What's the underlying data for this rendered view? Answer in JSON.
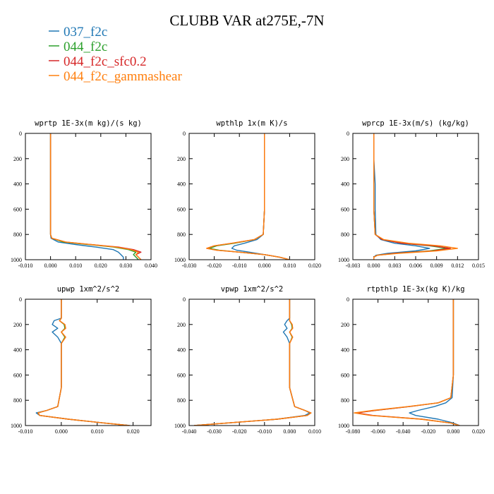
{
  "title": "CLUBB VAR at275E,-7N",
  "legend": [
    {
      "label": "037_f2c",
      "color": "#1f77b4"
    },
    {
      "label": "044_f2c",
      "color": "#2ca02c"
    },
    {
      "label": "044_f2c_sfc0.2",
      "color": "#d62728"
    },
    {
      "label": "044_f2c_gammashear",
      "color": "#ff7f0e"
    }
  ],
  "chart_data": [
    {
      "type": "line",
      "title": "wprtp 1E-3x(m kg)/(s kg)",
      "xlim": [
        -0.01,
        0.04
      ],
      "ylim": [
        1000,
        0
      ],
      "xticks": [
        "-0.010",
        "0.000",
        "0.010",
        "0.020",
        "0.030",
        "0.040"
      ],
      "yticks": [
        "0",
        "200",
        "400",
        "600",
        "800",
        "1000"
      ],
      "y": [
        0,
        200,
        400,
        600,
        800,
        830,
        860,
        880,
        900,
        920,
        940,
        960,
        980,
        1000
      ],
      "series": [
        {
          "name": "037_f2c",
          "x": [
            0.0,
            0.0,
            0.0,
            0.0,
            0.0,
            0.0002,
            0.003,
            0.01,
            0.018,
            0.025,
            0.027,
            0.028,
            0.029,
            0.029
          ]
        },
        {
          "name": "044_f2c",
          "x": [
            0.0,
            0.0,
            0.0,
            0.0,
            0.0,
            0.0005,
            0.005,
            0.015,
            0.025,
            0.031,
            0.034,
            0.033,
            0.034,
            0.035
          ]
        },
        {
          "name": "044_f2c_sfc0.2",
          "x": [
            0.0,
            0.0,
            0.0,
            0.0,
            0.0,
            0.0005,
            0.006,
            0.016,
            0.027,
            0.033,
            0.036,
            0.034,
            0.035,
            0.036
          ]
        },
        {
          "name": "044_f2c_gammashear",
          "x": [
            0.0,
            0.0,
            0.0,
            0.0,
            0.0,
            0.0005,
            0.006,
            0.016,
            0.026,
            0.032,
            0.035,
            0.034,
            0.035,
            0.036
          ]
        }
      ]
    },
    {
      "type": "line",
      "title": "wpthlp 1x(m K)/s",
      "xlim": [
        -0.03,
        0.02
      ],
      "ylim": [
        1000,
        0
      ],
      "xticks": [
        "-0.030",
        "-0.020",
        "-0.010",
        "0.000",
        "0.010",
        "0.020"
      ],
      "yticks": [
        "0",
        "200",
        "400",
        "600",
        "800",
        "1000"
      ],
      "y": [
        0,
        200,
        400,
        600,
        800,
        840,
        870,
        890,
        910,
        925,
        940,
        960,
        980,
        1000
      ],
      "series": [
        {
          "name": "037_f2c",
          "x": [
            0.0,
            0.0,
            0.0,
            0.0,
            -0.0005,
            -0.003,
            -0.008,
            -0.012,
            -0.013,
            -0.011,
            -0.006,
            0.0,
            0.006,
            0.01
          ]
        },
        {
          "name": "044_f2c",
          "x": [
            0.0,
            0.0,
            0.0,
            0.0,
            -0.0005,
            -0.004,
            -0.012,
            -0.019,
            -0.022,
            -0.018,
            -0.01,
            0.0,
            0.006,
            0.01
          ]
        },
        {
          "name": "044_f2c_sfc0.2",
          "x": [
            0.0,
            0.0,
            0.0,
            0.0,
            -0.0005,
            -0.004,
            -0.013,
            -0.02,
            -0.023,
            -0.019,
            -0.01,
            0.0,
            0.006,
            0.01
          ]
        },
        {
          "name": "044_f2c_gammashear",
          "x": [
            0.0,
            0.0,
            0.0,
            0.0,
            -0.0005,
            -0.004,
            -0.013,
            -0.02,
            -0.023,
            -0.019,
            -0.01,
            0.0,
            0.006,
            0.01
          ]
        }
      ]
    },
    {
      "type": "line",
      "title": "wprcp 1E-3x(m/s) (kg/kg)",
      "xlim": [
        -0.003,
        0.015
      ],
      "ylim": [
        1000,
        0
      ],
      "xticks": [
        "-0.003",
        "0.000",
        "0.003",
        "0.006",
        "0.009",
        "0.012",
        "0.015"
      ],
      "yticks": [
        "0",
        "200",
        "400",
        "600",
        "800",
        "1000"
      ],
      "y": [
        0,
        200,
        400,
        600,
        800,
        840,
        870,
        890,
        910,
        930,
        950,
        965,
        980,
        1000
      ],
      "series": [
        {
          "name": "037_f2c",
          "x": [
            0.0,
            0.0,
            0.0002,
            0.0002,
            0.0003,
            0.001,
            0.003,
            0.006,
            0.008,
            0.006,
            0.002,
            0.0003,
            0.0,
            0.0
          ]
        },
        {
          "name": "044_f2c",
          "x": [
            0.0,
            0.0,
            0.0,
            0.0,
            0.0002,
            0.0012,
            0.004,
            0.008,
            0.0105,
            0.008,
            0.003,
            0.0005,
            0.0,
            0.0
          ]
        },
        {
          "name": "044_f2c_sfc0.2",
          "x": [
            0.0,
            0.0,
            0.0,
            0.0,
            0.0002,
            0.0012,
            0.004,
            0.0085,
            0.011,
            0.0085,
            0.003,
            0.0005,
            0.0,
            0.0
          ]
        },
        {
          "name": "044_f2c_gammashear",
          "x": [
            0.0,
            0.0,
            0.0,
            0.0,
            0.0002,
            0.0014,
            0.005,
            0.0095,
            0.012,
            0.009,
            0.0035,
            0.0005,
            0.0,
            0.0
          ]
        }
      ]
    },
    {
      "type": "line",
      "title": "upwp 1xm^2/s^2",
      "xlim": [
        -0.01,
        0.025
      ],
      "ylim": [
        1000,
        0
      ],
      "xticks": [
        "-0.010",
        "0.000",
        "0.010",
        "0.020"
      ],
      "yticks": [
        "0",
        "200",
        "400",
        "600",
        "800",
        "1000"
      ],
      "y": [
        0,
        150,
        170,
        200,
        230,
        260,
        300,
        350,
        500,
        700,
        850,
        880,
        900,
        920,
        950,
        980,
        1000
      ],
      "series": [
        {
          "name": "037_f2c",
          "x": [
            0.0,
            0.0,
            -0.002,
            -0.0025,
            -0.001,
            -0.0025,
            -0.001,
            0.0,
            0.0,
            0.0,
            -0.001,
            -0.004,
            -0.007,
            -0.006,
            0.002,
            0.012,
            0.019
          ]
        },
        {
          "name": "044_f2c",
          "x": [
            0.0,
            0.0,
            -0.0005,
            0.0008,
            0.001,
            0.0,
            0.001,
            0.0,
            0.0,
            0.0,
            -0.001,
            -0.004,
            -0.0065,
            -0.006,
            0.002,
            0.012,
            0.019
          ]
        },
        {
          "name": "044_f2c_sfc0.2",
          "x": [
            0.0,
            0.0,
            -0.0005,
            0.001,
            0.0012,
            0.0,
            0.0012,
            0.0,
            0.0,
            0.0,
            -0.001,
            -0.004,
            -0.0065,
            -0.006,
            0.002,
            0.012,
            0.019
          ]
        },
        {
          "name": "044_f2c_gammashear",
          "x": [
            0.0,
            0.0,
            -0.0005,
            0.001,
            0.0012,
            0.0,
            0.0012,
            0.0,
            0.0,
            0.0,
            -0.001,
            -0.004,
            -0.0065,
            -0.006,
            0.002,
            0.012,
            0.019
          ]
        }
      ]
    },
    {
      "type": "line",
      "title": "vpwp 1xm^2/s^2",
      "xlim": [
        -0.04,
        0.01
      ],
      "ylim": [
        1000,
        0
      ],
      "xticks": [
        "-0.040",
        "-0.030",
        "-0.020",
        "-0.010",
        "0.000",
        "0.010"
      ],
      "yticks": [
        "0",
        "200",
        "400",
        "600",
        "800",
        "1000"
      ],
      "y": [
        0,
        150,
        170,
        200,
        230,
        260,
        300,
        350,
        500,
        700,
        850,
        880,
        900,
        920,
        950,
        980,
        1000
      ],
      "series": [
        {
          "name": "037_f2c",
          "x": [
            0.0,
            0.0,
            -0.001,
            -0.002,
            -0.001,
            -0.0025,
            -0.001,
            0.0,
            0.0,
            0.0,
            0.002,
            0.006,
            0.008,
            0.006,
            -0.005,
            -0.025,
            -0.038
          ]
        },
        {
          "name": "044_f2c",
          "x": [
            0.0,
            0.0,
            0.0,
            0.0008,
            0.001,
            0.0,
            0.001,
            0.0,
            0.0,
            0.0,
            0.002,
            0.006,
            0.0085,
            0.007,
            -0.005,
            -0.025,
            -0.038
          ]
        },
        {
          "name": "044_f2c_sfc0.2",
          "x": [
            0.0,
            0.0,
            0.0,
            0.001,
            0.0012,
            0.0,
            0.0012,
            0.0,
            0.0,
            0.0,
            0.002,
            0.006,
            0.0085,
            0.007,
            -0.005,
            -0.025,
            -0.038
          ]
        },
        {
          "name": "044_f2c_gammashear",
          "x": [
            0.0,
            0.0,
            0.0,
            0.001,
            0.0012,
            0.0,
            0.0012,
            0.0,
            0.0,
            0.0,
            0.002,
            0.006,
            0.0085,
            0.007,
            -0.005,
            -0.025,
            -0.038
          ]
        }
      ]
    },
    {
      "type": "line",
      "title": "rtpthlp 1E-3x(kg K)/kg",
      "xlim": [
        -0.08,
        0.02
      ],
      "ylim": [
        1000,
        0
      ],
      "xticks": [
        "-0.080",
        "-0.060",
        "-0.040",
        "-0.020",
        "0.000",
        "0.020"
      ],
      "yticks": [
        "0",
        "200",
        "400",
        "600",
        "800",
        "1000"
      ],
      "y": [
        0,
        200,
        400,
        600,
        780,
        820,
        850,
        880,
        900,
        920,
        950,
        980,
        1000
      ],
      "series": [
        {
          "name": "037_f2c",
          "x": [
            0.0,
            0.0,
            0.0,
            0.0,
            -0.001,
            -0.006,
            -0.015,
            -0.028,
            -0.035,
            -0.03,
            -0.012,
            0.0,
            0.005
          ]
        },
        {
          "name": "044_f2c",
          "x": [
            0.0,
            0.0,
            0.0,
            0.0,
            -0.002,
            -0.012,
            -0.035,
            -0.062,
            -0.078,
            -0.065,
            -0.025,
            -0.002,
            0.005
          ]
        },
        {
          "name": "044_f2c_sfc0.2",
          "x": [
            0.0,
            0.0,
            0.0,
            0.0,
            -0.002,
            -0.012,
            -0.035,
            -0.062,
            -0.077,
            -0.064,
            -0.025,
            -0.002,
            0.005
          ]
        },
        {
          "name": "044_f2c_gammashear",
          "x": [
            0.0,
            0.0,
            0.0,
            0.0,
            -0.002,
            -0.012,
            -0.036,
            -0.064,
            -0.079,
            -0.066,
            -0.026,
            -0.002,
            0.005
          ]
        }
      ]
    }
  ]
}
